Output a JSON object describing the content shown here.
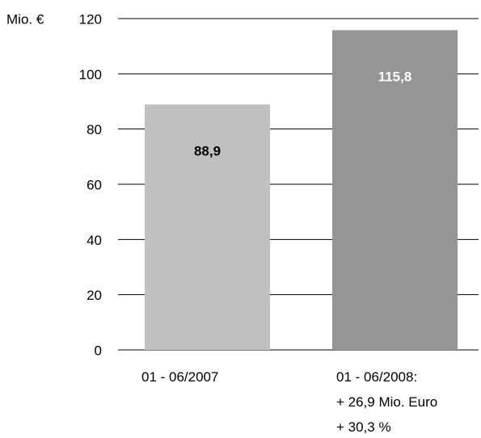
{
  "chart_data": {
    "type": "bar",
    "y_unit_label": "Mio. €",
    "yticks": [
      "0",
      "20",
      "40",
      "60",
      "80",
      "100",
      "120"
    ],
    "ylim": [
      0,
      120
    ],
    "grid": true,
    "categories": [
      "01 - 06/2007",
      "01 - 06/2008:"
    ],
    "category_notes": [
      [],
      [
        "+ 26,9 Mio. Euro",
        "+ 30,3 %"
      ]
    ],
    "values": [
      88.9,
      115.8
    ],
    "value_labels": [
      "88,9",
      "115,8"
    ],
    "colors": [
      "#c0c0c0",
      "#959595"
    ],
    "label_colors": [
      "#000000",
      "#ffffff"
    ]
  }
}
